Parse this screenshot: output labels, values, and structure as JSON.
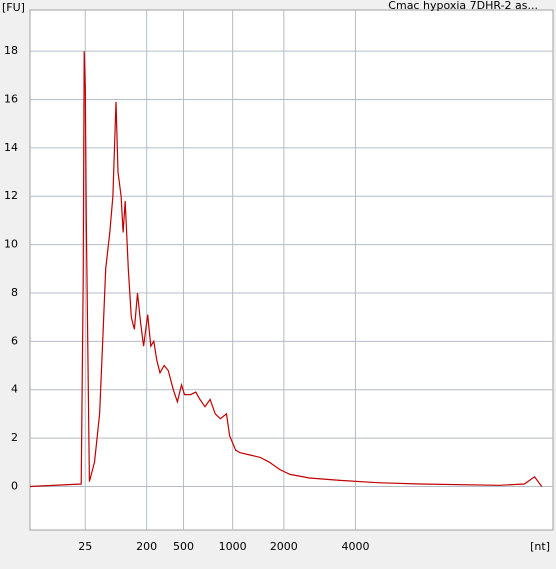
{
  "chart_data": {
    "type": "line",
    "title": "Cmac hypoxia 7DHR-2 as...",
    "y_label": "[FU]",
    "x_label": "[nt]",
    "x": [
      19,
      24.0,
      24.2,
      24.3,
      24.4,
      24.5,
      24.8,
      25.3,
      25.8,
      26.1,
      26.4,
      26.8,
      27.1,
      27.4,
      27.6,
      27.9,
      28.1,
      28.3,
      28.6,
      28.9,
      29.2,
      29.5,
      29.8,
      30.1,
      30.5,
      30.8,
      31.1,
      31.4,
      31.7,
      32.1,
      32.5,
      33.0,
      33.4,
      33.8,
      34.1,
      34.7,
      35.2,
      35.6,
      36.1,
      36.6,
      37.1,
      37.6,
      38.2,
      38.5,
      39.1,
      39.5,
      40.5,
      41.5,
      42.4,
      43.4,
      44.4,
      46.3,
      49.3,
      53.2,
      57.1,
      64.9,
      67.3,
      68.3,
      69
    ],
    "series": [
      {
        "name": "Cmac hypoxia 7DHR-2 as...",
        "color": "#c00000",
        "values": [
          0.0,
          0.1,
          8.5,
          18,
          16.5,
          11,
          0.2,
          1,
          3,
          6,
          9,
          10.5,
          12,
          15.9,
          13,
          12,
          10.5,
          11.8,
          9,
          7,
          6.5,
          8,
          6.8,
          5.8,
          7.1,
          5.8,
          6,
          5.2,
          4.7,
          5,
          4.8,
          4,
          3.5,
          4.2,
          3.8,
          3.8,
          3.9,
          3.6,
          3.3,
          3.6,
          3,
          2.8,
          3,
          2.1,
          1.5,
          1.4,
          1.3,
          1.2,
          1.0,
          0.7,
          0.5,
          0.35,
          0.25,
          0.15,
          0.1,
          0.05,
          0.1,
          0.4,
          0.0
        ]
      }
    ],
    "xlim": [
      19,
      70.1
    ],
    "ylim": [
      -1.8,
      19.7
    ],
    "xticks": [
      {
        "value": 24.4,
        "label": "25"
      },
      {
        "value": 30.4,
        "label": "200"
      },
      {
        "value": 34.0,
        "label": "500"
      },
      {
        "value": 38.8,
        "label": "1000"
      },
      {
        "value": 43.8,
        "label": "2000"
      },
      {
        "value": 50.8,
        "label": "4000"
      }
    ],
    "yticks": [
      0,
      2,
      4,
      6,
      8,
      10,
      12,
      14,
      16,
      18
    ],
    "grid": true
  }
}
